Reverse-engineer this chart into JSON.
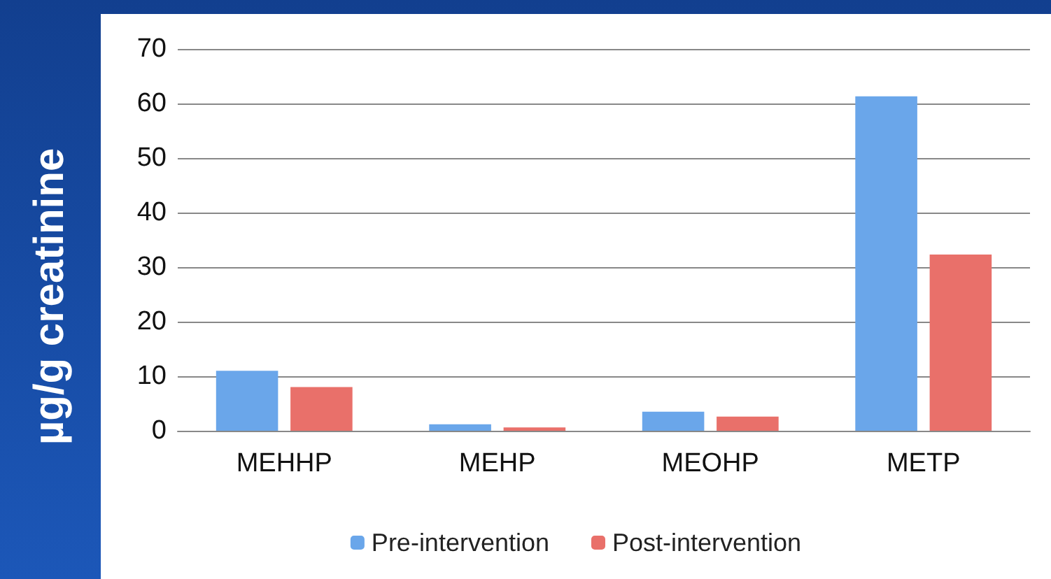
{
  "chart_data": {
    "type": "bar",
    "ylabel": "µg/g creatinine",
    "categories": [
      "MEHHP",
      "MEHP",
      "MEOHP",
      "METP"
    ],
    "series": [
      {
        "name": "Pre-intervention",
        "color": "#6aa6ea",
        "values": [
          11,
          1.2,
          3.5,
          61.3
        ]
      },
      {
        "name": "Post-intervention",
        "color": "#e9706a",
        "values": [
          8,
          0.6,
          2.6,
          32.3
        ]
      }
    ],
    "ylim": [
      0,
      70
    ],
    "yticks": [
      0,
      10,
      20,
      30,
      40,
      50,
      60,
      70
    ],
    "grid": "y",
    "legend": "bottom"
  }
}
